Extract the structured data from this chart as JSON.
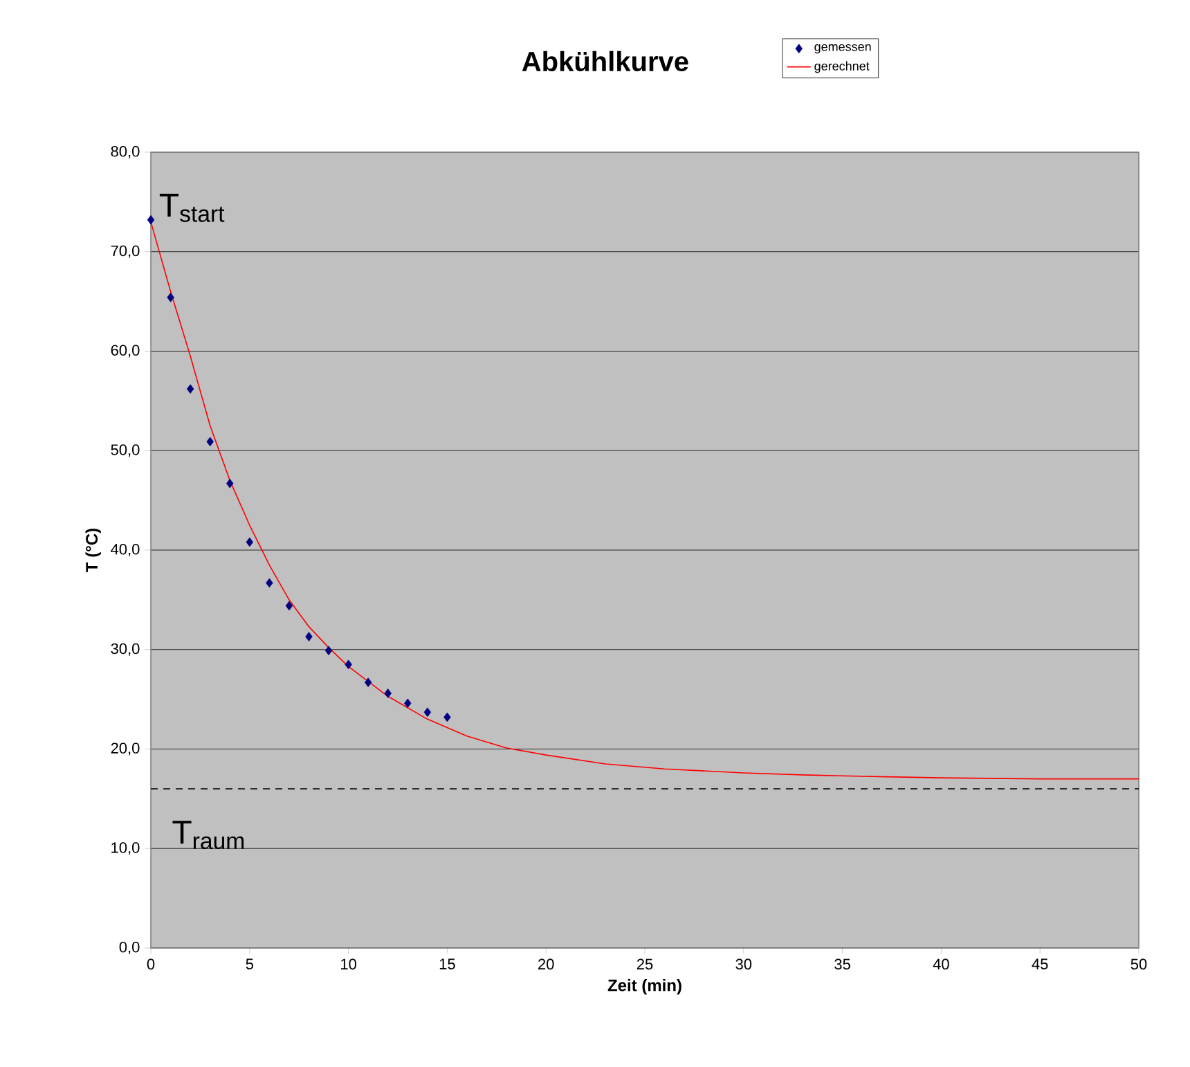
{
  "chart_data": {
    "type": "scatter",
    "title": "Abkühlkurve",
    "xlabel": "Zeit (min)",
    "ylabel": "T (°C)",
    "xlim": [
      0,
      50
    ],
    "xticks": [
      0,
      5,
      10,
      15,
      20,
      25,
      30,
      35,
      40,
      45,
      50
    ],
    "ylim": [
      0,
      80
    ],
    "yticks": [
      {
        "value": 0,
        "label": "0,0"
      },
      {
        "value": 10,
        "label": "10,0"
      },
      {
        "value": 20,
        "label": "20,0"
      },
      {
        "value": 30,
        "label": "30,0"
      },
      {
        "value": 40,
        "label": "40,0"
      },
      {
        "value": 50,
        "label": "50,0"
      },
      {
        "value": 60,
        "label": "60,0"
      },
      {
        "value": 70,
        "label": "70,0"
      },
      {
        "value": 80,
        "label": "80,0"
      }
    ],
    "grid": "y",
    "legend": "top right",
    "series": [
      {
        "name": "gemessen",
        "marker": "diamond",
        "color": "#000080",
        "x": [
          0,
          1,
          2,
          3,
          4,
          5,
          6,
          7,
          8,
          9,
          10,
          11,
          12,
          13,
          14,
          15
        ],
        "values": [
          73.2,
          65.4,
          56.2,
          50.9,
          46.7,
          40.8,
          36.7,
          34.4,
          31.3,
          29.9,
          28.5,
          26.7,
          25.6,
          24.6,
          23.7,
          23.2
        ]
      },
      {
        "name": "gerechnet",
        "type": "line",
        "marker": "none",
        "line_style": "solid",
        "color": "#ff0000",
        "x": [
          0,
          1,
          2,
          3,
          4,
          5,
          6,
          7,
          8,
          9,
          10,
          12,
          14,
          16,
          18,
          20,
          23,
          26,
          30,
          33,
          35,
          40,
          45,
          50
        ],
        "values": [
          73,
          66,
          59.5,
          52.5,
          47,
          42.5,
          38.5,
          35,
          32.3,
          30.2,
          28.3,
          25.3,
          23,
          21.3,
          20.1,
          19.4,
          18.5,
          18,
          17.6,
          17.4,
          17.3,
          17.1,
          17,
          17
        ]
      }
    ],
    "ref_lines": [
      {
        "axis": "y",
        "value": 16,
        "color": "#000000",
        "line_style": "dashed"
      }
    ],
    "annotations": [
      "T$_{start}$",
      "T$_{raum}$"
    ]
  }
}
